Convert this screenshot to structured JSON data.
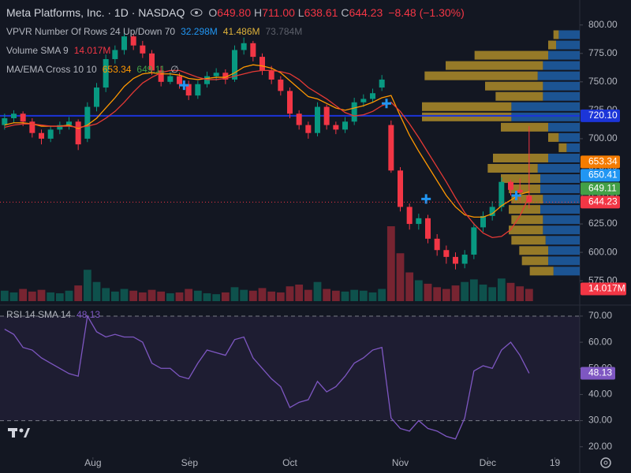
{
  "header": {
    "title": "Meta Platforms, Inc. · 1D · NASDAQ",
    "ohlc": [
      {
        "key": "O",
        "value": "649.80"
      },
      {
        "key": "H",
        "value": "711.00"
      },
      {
        "key": "L",
        "value": "638.61"
      },
      {
        "key": "C",
        "value": "644.23"
      }
    ],
    "change": "−8.48 (−1.30%)"
  },
  "legends": [
    {
      "label": "VPVR Number Of Rows 24 Up/Down 70",
      "values": [
        "32.298M",
        "41.486M",
        "73.784M"
      ]
    },
    {
      "label": "Volume SMA 9",
      "values": [
        "14.017M"
      ]
    },
    {
      "label": "MA/EMA Cross 10 10",
      "values": [
        "653.34",
        "649.11",
        "∅"
      ]
    },
    {
      "label": "RSI 14 SMA 14",
      "values": [
        "48.13"
      ]
    }
  ],
  "chart_data": [
    {
      "type": "candlestick",
      "xlim": [
        -0.5,
        62.5
      ],
      "ylim": [
        555,
        822
      ],
      "yticks": [
        {
          "value": 800,
          "label": "800.00"
        },
        {
          "value": 775,
          "label": "775.00"
        },
        {
          "value": 750,
          "label": "750.00"
        },
        {
          "value": 725,
          "label": "725.00"
        },
        {
          "value": 700,
          "label": "700.00"
        },
        {
          "value": 675,
          "label": "675.00"
        },
        {
          "value": 650,
          "label": "650.00"
        },
        {
          "value": 625,
          "label": "625.00"
        },
        {
          "value": 600,
          "label": "600.00"
        },
        {
          "value": 575,
          "label": "575.00"
        }
      ],
      "open": [
        712,
        718,
        722,
        715,
        705,
        700,
        708,
        712,
        715,
        700,
        728,
        745,
        770,
        778,
        790,
        782,
        775,
        760,
        750,
        755,
        748,
        738,
        748,
        755,
        758,
        752,
        778,
        784,
        772,
        760,
        752,
        742,
        722,
        712,
        705,
        728,
        712,
        708,
        715,
        732,
        735,
        745,
        712,
        672,
        640,
        625,
        630,
        612,
        602,
        596,
        590,
        598,
        622,
        632,
        640,
        662,
        655,
        649.8
      ],
      "high": [
        722,
        725,
        724,
        718,
        708,
        711,
        715,
        719,
        717,
        732,
        749,
        774,
        782,
        795,
        792,
        786,
        778,
        764,
        759,
        758,
        751,
        751,
        759,
        762,
        761,
        782,
        789,
        786,
        775,
        764,
        755,
        745,
        725,
        715,
        732,
        730,
        715,
        719,
        736,
        739,
        744,
        756,
        716,
        675,
        643,
        634,
        633,
        616,
        606,
        600,
        602,
        626,
        636,
        645,
        666,
        664,
        665,
        711.0
      ],
      "low": [
        708,
        714,
        711,
        701,
        695,
        697,
        704,
        708,
        690,
        697,
        724,
        741,
        766,
        774,
        778,
        771,
        756,
        746,
        748,
        744,
        734,
        735,
        745,
        751,
        748,
        750,
        774,
        768,
        756,
        748,
        738,
        718,
        708,
        700,
        702,
        708,
        704,
        705,
        712,
        728,
        732,
        742,
        670,
        636,
        620,
        620,
        608,
        597,
        590,
        585,
        586,
        594,
        618,
        628,
        636,
        650,
        645,
        638.61
      ],
      "close": [
        718,
        722,
        715,
        705,
        700,
        708,
        712,
        715,
        695,
        728,
        745,
        770,
        778,
        790,
        782,
        775,
        760,
        750,
        755,
        748,
        738,
        748,
        755,
        758,
        752,
        778,
        784,
        772,
        760,
        752,
        742,
        722,
        712,
        705,
        728,
        712,
        708,
        715,
        732,
        735,
        740,
        752,
        672,
        640,
        625,
        630,
        612,
        602,
        596,
        590,
        598,
        622,
        632,
        640,
        662,
        655,
        652.71,
        644.23
      ],
      "volume": [
        12,
        10,
        14,
        11,
        13,
        10,
        9,
        12,
        18,
        36,
        22,
        15,
        11,
        14,
        12,
        10,
        13,
        11,
        9,
        10,
        14,
        12,
        9,
        8,
        10,
        16,
        13,
        12,
        15,
        11,
        10,
        17,
        19,
        13,
        22,
        14,
        12,
        11,
        13,
        12,
        10,
        14,
        86,
        55,
        33,
        24,
        20,
        16,
        14,
        18,
        22,
        25,
        19,
        16,
        26,
        21,
        17,
        14.017
      ],
      "volume_tag": {
        "value": 14.017,
        "label": "14.017M"
      },
      "ema": [
        712,
        714,
        714,
        713,
        711,
        711,
        711,
        712,
        709,
        712,
        718,
        727,
        736,
        746,
        753,
        757,
        758,
        757,
        757,
        756,
        753,
        752,
        753,
        754,
        754,
        758,
        763,
        765,
        764,
        762,
        758,
        751,
        744,
        737,
        735,
        731,
        727,
        725,
        727,
        729,
        732,
        736,
        738,
        720,
        703,
        689,
        676,
        663,
        650,
        640,
        633,
        631,
        631,
        634,
        641,
        646,
        651,
        653.34
      ],
      "sma": [
        710,
        712,
        713,
        713,
        712,
        711,
        711,
        711,
        710,
        711,
        713,
        718,
        724,
        732,
        741,
        749,
        754,
        758,
        760,
        760,
        757,
        754,
        752,
        752,
        753,
        755,
        757,
        759,
        760,
        760,
        759,
        757,
        752,
        745,
        740,
        735,
        729,
        723,
        720,
        721,
        724,
        729,
        732,
        724,
        713,
        701,
        688,
        675,
        662,
        648,
        635,
        625,
        617,
        613,
        614,
        620,
        632,
        649.11
      ],
      "vpvr": {
        "price_range": [
          579,
          796
        ],
        "up": [
          0.8,
          0.9,
          1.2,
          1.4,
          1.6,
          1.4,
          1.4,
          2.6,
          2.6,
          1.2,
          0.8,
          0.5,
          1.2,
          1.6,
          1.5,
          1.5,
          1.4,
          1.5,
          1.4,
          1.4,
          1.3,
          1.2,
          1.2,
          1.0
        ],
        "down": [
          0.2,
          0.3,
          2.8,
          3.7,
          4.3,
          2.2,
          1.8,
          3.4,
          3.4,
          1.8,
          0.4,
          0.3,
          2.1,
          1.9,
          1.5,
          1.2,
          1.2,
          1.2,
          1.2,
          1.3,
          1.3,
          1.1,
          1.0,
          0.9
        ],
        "up_color": "#1f64b0",
        "down_color": "#b8942a"
      },
      "cross_markers": [
        {
          "x": 19.5,
          "y": 747
        },
        {
          "x": 41.5,
          "y": 731
        },
        {
          "x": 45.8,
          "y": 647
        },
        {
          "x": 55.6,
          "y": 650
        }
      ],
      "hline": {
        "value": 720.1,
        "label": "720.10",
        "color": "#1c35d8"
      },
      "price_tags": [
        {
          "value": 653.34,
          "label": "653.34",
          "color": "#f57c00"
        },
        {
          "value": 650.41,
          "label": "650.41",
          "color": "#2196f3"
        },
        {
          "value": 649.11,
          "label": "649.11",
          "color": "#43a047"
        },
        {
          "value": 644.23,
          "label": "644.23",
          "color": "#f23645"
        }
      ],
      "up_color": "#089981",
      "down_color": "#f23645",
      "ema_color": "#ff9800",
      "sma_color": "#e53935",
      "cross_color": "#2196f3",
      "grid": false
    },
    {
      "type": "line",
      "xlim": [
        -0.5,
        62.5
      ],
      "ylim": [
        16,
        73.3
      ],
      "yticks": [
        {
          "value": 70,
          "label": "70.00"
        },
        {
          "value": 60,
          "label": "60.00"
        },
        {
          "value": 50,
          "label": "50.00"
        },
        {
          "value": 40,
          "label": "40.00"
        },
        {
          "value": 30,
          "label": "30.00"
        },
        {
          "value": 20,
          "label": "20.00"
        }
      ],
      "xticks": [
        {
          "value": 9.6,
          "label": "Aug"
        },
        {
          "value": 20.1,
          "label": "Sep"
        },
        {
          "value": 31,
          "label": "Oct"
        },
        {
          "value": 43,
          "label": "Nov"
        },
        {
          "value": 52.5,
          "label": "Dec"
        },
        {
          "value": 59.8,
          "label": "19"
        }
      ],
      "values": [
        65,
        63,
        58,
        57,
        54,
        52,
        50,
        48,
        47,
        70,
        64,
        62,
        63,
        62,
        62,
        60,
        52,
        50,
        50,
        47,
        46,
        52,
        57,
        56,
        55,
        61,
        62,
        54,
        50,
        46,
        43,
        35,
        37,
        38,
        45,
        41,
        43,
        47,
        52,
        54,
        57,
        58,
        31,
        27,
        26,
        30,
        27,
        26,
        24,
        23,
        31,
        49,
        51,
        50,
        57,
        60,
        55,
        48.13
      ],
      "band": [
        30,
        70
      ],
      "color": "#7e57c2",
      "grid": false
    }
  ]
}
